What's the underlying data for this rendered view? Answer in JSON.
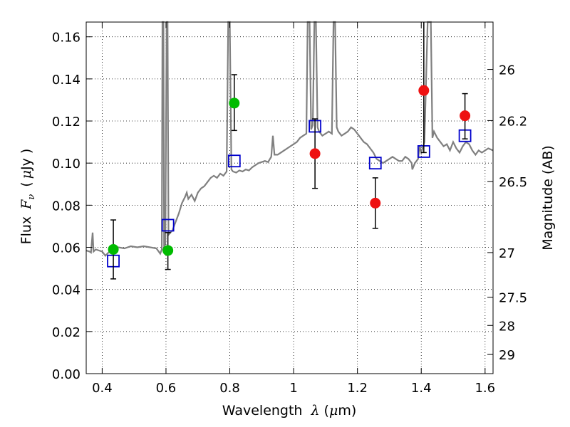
{
  "chart_data": {
    "type": "scatter",
    "xlabel": "Wavelength",
    "xlabel_symbol": "λ",
    "xlabel_unit_open": "(",
    "xlabel_unit_mu": "μ",
    "xlabel_unit_rest": "m)",
    "ylabel": "Flux",
    "ylabel_symbol": "F",
    "ylabel_subscript": "ν",
    "ylabel_unit_open": "(",
    "ylabel_unit_mu": "μ",
    "ylabel_unit_rest": "Jy )",
    "y2label": "Magnitude (AB)",
    "xlim": [
      0.35,
      1.625
    ],
    "ylim": [
      0.0,
      0.167
    ],
    "x_ticks": [
      0.4,
      0.6,
      0.8,
      1.0,
      1.2,
      1.4,
      1.6
    ],
    "x_tick_labels": [
      "0.4",
      "0.6",
      "0.8",
      "1",
      "1.2",
      "1.4",
      "1.6"
    ],
    "y_ticks": [
      0.0,
      0.02,
      0.04,
      0.06,
      0.08,
      0.1,
      0.12,
      0.14,
      0.16
    ],
    "y_tick_labels": [
      "0.00",
      "0.02",
      "0.04",
      "0.06",
      "0.08",
      "0.10",
      "0.12",
      "0.14",
      "0.16"
    ],
    "y2_ticks": [
      {
        "flux": 0.1445,
        "label": "26"
      },
      {
        "flux": 0.1202,
        "label": "26.2"
      },
      {
        "flux": 0.0912,
        "label": "26.5"
      },
      {
        "flux": 0.0575,
        "label": "27"
      },
      {
        "flux": 0.0363,
        "label": "27.5"
      },
      {
        "flux": 0.0229,
        "label": "28"
      },
      {
        "flux": 0.0091,
        "label": "29"
      }
    ],
    "grid": true,
    "colors": {
      "spectrum": "#808080",
      "model": "#0000cc",
      "green": "#00bb00",
      "red": "#ee1111",
      "errorbar": "#000000"
    },
    "model_points": [
      {
        "x": 0.435,
        "y": 0.0535
      },
      {
        "x": 0.606,
        "y": 0.0705
      },
      {
        "x": 0.814,
        "y": 0.101
      },
      {
        "x": 1.067,
        "y": 0.1175
      },
      {
        "x": 1.256,
        "y": 0.1
      },
      {
        "x": 1.408,
        "y": 0.1055
      },
      {
        "x": 1.537,
        "y": 0.113
      }
    ],
    "observed_green": [
      {
        "x": 0.435,
        "y": 0.059,
        "ylow": 0.045,
        "yhigh": 0.073
      },
      {
        "x": 0.606,
        "y": 0.0585,
        "ylow": 0.0495,
        "yhigh": 0.067
      },
      {
        "x": 0.814,
        "y": 0.1285,
        "ylow": 0.1155,
        "yhigh": 0.142
      }
    ],
    "observed_red": [
      {
        "x": 1.067,
        "y": 0.1045,
        "ylow": 0.088,
        "yhigh": 0.121
      },
      {
        "x": 1.256,
        "y": 0.081,
        "ylow": 0.069,
        "yhigh": 0.093
      },
      {
        "x": 1.408,
        "y": 0.1345,
        "ylow": 0.105,
        "yhigh": 0.167
      },
      {
        "x": 1.537,
        "y": 0.1225,
        "ylow": 0.1115,
        "yhigh": 0.133
      }
    ],
    "spectrum": [
      [
        0.35,
        0.0585
      ],
      [
        0.36,
        0.058
      ],
      [
        0.365,
        0.0575
      ],
      [
        0.37,
        0.067
      ],
      [
        0.373,
        0.058
      ],
      [
        0.38,
        0.059
      ],
      [
        0.39,
        0.0585
      ],
      [
        0.4,
        0.058
      ],
      [
        0.41,
        0.056
      ],
      [
        0.42,
        0.0575
      ],
      [
        0.43,
        0.0585
      ],
      [
        0.44,
        0.0595
      ],
      [
        0.45,
        0.06
      ],
      [
        0.47,
        0.0595
      ],
      [
        0.49,
        0.0605
      ],
      [
        0.51,
        0.06
      ],
      [
        0.53,
        0.0605
      ],
      [
        0.55,
        0.06
      ],
      [
        0.57,
        0.0595
      ],
      [
        0.582,
        0.057
      ],
      [
        0.587,
        0.059
      ],
      [
        0.589,
        0.167
      ],
      [
        0.592,
        0.167
      ],
      [
        0.594,
        0.06
      ],
      [
        0.598,
        0.062
      ],
      [
        0.602,
        0.167
      ],
      [
        0.605,
        0.167
      ],
      [
        0.608,
        0.066
      ],
      [
        0.62,
        0.068
      ],
      [
        0.63,
        0.072
      ],
      [
        0.64,
        0.076
      ],
      [
        0.65,
        0.081
      ],
      [
        0.66,
        0.084
      ],
      [
        0.665,
        0.086
      ],
      [
        0.67,
        0.083
      ],
      [
        0.68,
        0.085
      ],
      [
        0.69,
        0.082
      ],
      [
        0.7,
        0.086
      ],
      [
        0.71,
        0.088
      ],
      [
        0.72,
        0.089
      ],
      [
        0.73,
        0.091
      ],
      [
        0.74,
        0.093
      ],
      [
        0.75,
        0.094
      ],
      [
        0.76,
        0.093
      ],
      [
        0.77,
        0.095
      ],
      [
        0.78,
        0.094
      ],
      [
        0.79,
        0.096
      ],
      [
        0.795,
        0.167
      ],
      [
        0.8,
        0.167
      ],
      [
        0.805,
        0.097
      ],
      [
        0.81,
        0.096
      ],
      [
        0.82,
        0.0955
      ],
      [
        0.83,
        0.0965
      ],
      [
        0.84,
        0.096
      ],
      [
        0.85,
        0.097
      ],
      [
        0.86,
        0.0965
      ],
      [
        0.87,
        0.098
      ],
      [
        0.88,
        0.099
      ],
      [
        0.89,
        0.1
      ],
      [
        0.9,
        0.1005
      ],
      [
        0.91,
        0.101
      ],
      [
        0.92,
        0.1005
      ],
      [
        0.93,
        0.103
      ],
      [
        0.935,
        0.113
      ],
      [
        0.94,
        0.104
      ],
      [
        0.95,
        0.104
      ],
      [
        0.96,
        0.105
      ],
      [
        0.97,
        0.106
      ],
      [
        0.98,
        0.107
      ],
      [
        0.99,
        0.108
      ],
      [
        1.0,
        0.109
      ],
      [
        1.01,
        0.11
      ],
      [
        1.02,
        0.112
      ],
      [
        1.03,
        0.113
      ],
      [
        1.04,
        0.114
      ],
      [
        1.044,
        0.167
      ],
      [
        1.05,
        0.167
      ],
      [
        1.055,
        0.116
      ],
      [
        1.06,
        0.118
      ],
      [
        1.065,
        0.167
      ],
      [
        1.07,
        0.167
      ],
      [
        1.075,
        0.117
      ],
      [
        1.08,
        0.115
      ],
      [
        1.09,
        0.113
      ],
      [
        1.1,
        0.114
      ],
      [
        1.11,
        0.115
      ],
      [
        1.12,
        0.114
      ],
      [
        1.125,
        0.167
      ],
      [
        1.13,
        0.167
      ],
      [
        1.135,
        0.117
      ],
      [
        1.14,
        0.115
      ],
      [
        1.15,
        0.113
      ],
      [
        1.16,
        0.114
      ],
      [
        1.17,
        0.115
      ],
      [
        1.18,
        0.117
      ],
      [
        1.19,
        0.116
      ],
      [
        1.2,
        0.114
      ],
      [
        1.21,
        0.112
      ],
      [
        1.22,
        0.11
      ],
      [
        1.23,
        0.109
      ],
      [
        1.24,
        0.107
      ],
      [
        1.25,
        0.105
      ],
      [
        1.26,
        0.102
      ],
      [
        1.27,
        0.101
      ],
      [
        1.28,
        0.1
      ],
      [
        1.29,
        0.101
      ],
      [
        1.3,
        0.102
      ],
      [
        1.31,
        0.103
      ],
      [
        1.32,
        0.102
      ],
      [
        1.33,
        0.101
      ],
      [
        1.34,
        0.101
      ],
      [
        1.35,
        0.103
      ],
      [
        1.36,
        0.102
      ],
      [
        1.37,
        0.1
      ],
      [
        1.372,
        0.097
      ],
      [
        1.38,
        0.1
      ],
      [
        1.39,
        0.102
      ],
      [
        1.395,
        0.108
      ],
      [
        1.4,
        0.105
      ],
      [
        1.41,
        0.11
      ],
      [
        1.42,
        0.167
      ],
      [
        1.43,
        0.167
      ],
      [
        1.435,
        0.112
      ],
      [
        1.44,
        0.115
      ],
      [
        1.45,
        0.112
      ],
      [
        1.46,
        0.11
      ],
      [
        1.47,
        0.108
      ],
      [
        1.48,
        0.109
      ],
      [
        1.49,
        0.106
      ],
      [
        1.5,
        0.11
      ],
      [
        1.51,
        0.107
      ],
      [
        1.52,
        0.105
      ],
      [
        1.53,
        0.108
      ],
      [
        1.54,
        0.11
      ],
      [
        1.55,
        0.109
      ],
      [
        1.56,
        0.106
      ],
      [
        1.57,
        0.104
      ],
      [
        1.58,
        0.106
      ],
      [
        1.59,
        0.105
      ],
      [
        1.6,
        0.106
      ],
      [
        1.61,
        0.107
      ],
      [
        1.625,
        0.106
      ]
    ]
  }
}
